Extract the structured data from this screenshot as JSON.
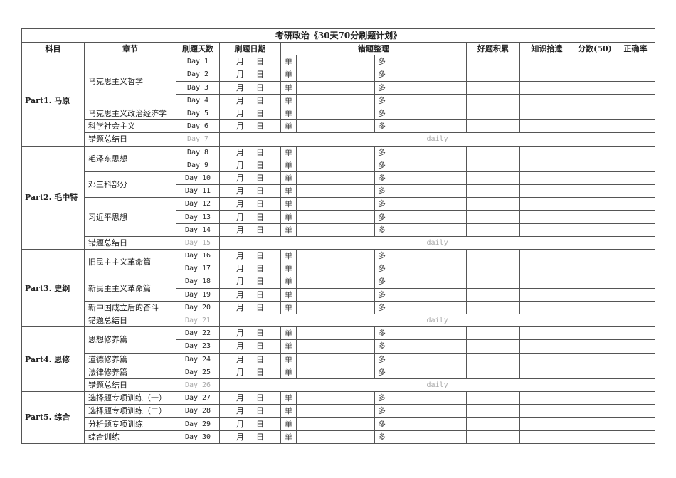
{
  "title": "考研政治《30天70分刷题计划》",
  "headers": {
    "subject": "科目",
    "chapter": "章节",
    "days": "刷题天数",
    "date": "刷题日期",
    "mistakes": "错题整理",
    "good": "好题积累",
    "knowledge": "知识拾遗",
    "score": "分数(50)",
    "accuracy": "正确率"
  },
  "labels": {
    "month": "月",
    "day": "日",
    "single": "单",
    "multi": "多",
    "daily": "daily"
  },
  "parts": [
    {
      "name": "Part1. 马原",
      "chapters": [
        {
          "name": "马克思主义哲学",
          "days": [
            "Day 1",
            "Day 2",
            "Day 3",
            "Day 4"
          ]
        },
        {
          "name": "马克思主义政治经济学",
          "days": [
            "Day 5"
          ]
        },
        {
          "name": "科学社会主义",
          "days": [
            "Day 6"
          ]
        },
        {
          "name": "错题总结日",
          "days": [
            "Day 7"
          ],
          "review": true
        }
      ]
    },
    {
      "name": "Part2. 毛中特",
      "chapters": [
        {
          "name": "毛泽东思想",
          "days": [
            "Day 8",
            "Day 9"
          ]
        },
        {
          "name": "邓三科部分",
          "days": [
            "Day 10",
            "Day 11"
          ]
        },
        {
          "name": "习近平思想",
          "days": [
            "Day 12",
            "Day 13",
            "Day 14"
          ]
        },
        {
          "name": "错题总结日",
          "days": [
            "Day 15"
          ],
          "review": true
        }
      ]
    },
    {
      "name": "Part3. 史纲",
      "chapters": [
        {
          "name": "旧民主主义革命篇",
          "days": [
            "Day 16",
            "Day 17"
          ]
        },
        {
          "name": "新民主主义革命篇",
          "days": [
            "Day 18",
            "Day 19"
          ]
        },
        {
          "name": "新中国成立后的奋斗",
          "days": [
            "Day 20"
          ]
        },
        {
          "name": "错题总结日",
          "days": [
            "Day 21"
          ],
          "review": true
        }
      ]
    },
    {
      "name": "Part4. 思修",
      "chapters": [
        {
          "name": "思想修养篇",
          "days": [
            "Day 22",
            "Day 23"
          ]
        },
        {
          "name": "道德修养篇",
          "days": [
            "Day 24"
          ]
        },
        {
          "name": "法律修养篇",
          "days": [
            "Day 25"
          ]
        },
        {
          "name": "错题总结日",
          "days": [
            "Day 26"
          ],
          "review": true
        }
      ]
    },
    {
      "name": "Part5. 综合",
      "chapters": [
        {
          "name": "选择题专项训练（一）",
          "days": [
            "Day 27"
          ]
        },
        {
          "name": "选择题专项训练（二）",
          "days": [
            "Day 28"
          ]
        },
        {
          "name": "分析题专项训练",
          "days": [
            "Day 29"
          ]
        },
        {
          "name": "综合训练",
          "days": [
            "Day 30"
          ]
        }
      ]
    }
  ]
}
